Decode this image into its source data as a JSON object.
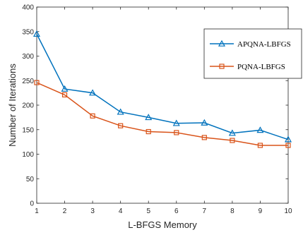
{
  "chart_data": {
    "type": "line",
    "title": "",
    "xlabel": "L-BFGS Memory",
    "ylabel": "Number of Iterations",
    "xlim": [
      1,
      10
    ],
    "ylim": [
      0,
      400
    ],
    "x": [
      1,
      2,
      3,
      4,
      5,
      6,
      7,
      8,
      9,
      10
    ],
    "xticks": [
      "1",
      "2",
      "3",
      "4",
      "5",
      "6",
      "7",
      "8",
      "9",
      "10"
    ],
    "yticks": [
      "0",
      "50",
      "100",
      "150",
      "200",
      "250",
      "300",
      "350",
      "400"
    ],
    "grid": false,
    "legend_position": "top-right",
    "series": [
      {
        "name": "APQNA-LBFGS",
        "marker": "triangle",
        "color": "#0072BD",
        "values": [
          345,
          233,
          225,
          186,
          175,
          163,
          164,
          143,
          149,
          130
        ]
      },
      {
        "name": "PQNA-LBFGS",
        "marker": "square",
        "color": "#D95319",
        "values": [
          246,
          221,
          178,
          158,
          146,
          144,
          134,
          128,
          118,
          118
        ]
      }
    ]
  }
}
